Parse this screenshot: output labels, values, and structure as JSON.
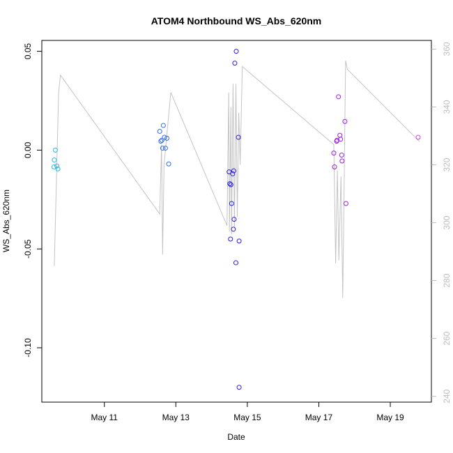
{
  "chart_data": {
    "type": "scatter",
    "title": "ATOM4 Northbound WS_Abs_620nm",
    "xlabel": "Date",
    "ylabel": "WS_Abs_620nm",
    "x_unit": "days in May",
    "xlim": [
      9.25,
      20.15
    ],
    "ylim": [
      -0.1275,
      0.0555
    ],
    "y2lim": [
      238,
      363
    ],
    "x_ticks": [
      {
        "value": 11,
        "label": "May 11"
      },
      {
        "value": 13,
        "label": "May 13"
      },
      {
        "value": 15,
        "label": "May 15"
      },
      {
        "value": 17,
        "label": "May 17"
      },
      {
        "value": 19,
        "label": "May 19"
      }
    ],
    "y_ticks": [
      {
        "value": 0.05,
        "label": "0.05"
      },
      {
        "value": 0.0,
        "label": "0.00"
      },
      {
        "value": -0.05,
        "label": "-0.05"
      },
      {
        "value": -0.1,
        "label": "-0.10"
      }
    ],
    "y2_ticks": [
      {
        "value": 240,
        "label": "240"
      },
      {
        "value": 260,
        "label": "260"
      },
      {
        "value": 280,
        "label": "280"
      },
      {
        "value": 300,
        "label": "300"
      },
      {
        "value": 320,
        "label": "320"
      },
      {
        "value": 340,
        "label": "340"
      },
      {
        "value": 360,
        "label": "360"
      }
    ],
    "grid": false,
    "series": [
      {
        "kind": "points",
        "color": "#29b8e6",
        "points": [
          {
            "x": 9.63,
            "y": 0.0
          },
          {
            "x": 9.6,
            "y": -0.005
          },
          {
            "x": 9.59,
            "y": -0.0085
          },
          {
            "x": 9.67,
            "y": -0.008
          },
          {
            "x": 9.7,
            "y": -0.0095
          }
        ]
      },
      {
        "kind": "points",
        "color": "#2f6de0",
        "points": [
          {
            "x": 12.55,
            "y": 0.0095
          },
          {
            "x": 12.58,
            "y": 0.0045
          },
          {
            "x": 12.61,
            "y": 0.005
          },
          {
            "x": 12.65,
            "y": 0.0125
          },
          {
            "x": 12.68,
            "y": 0.0065
          },
          {
            "x": 12.75,
            "y": 0.006
          },
          {
            "x": 12.63,
            "y": 0.001
          },
          {
            "x": 12.71,
            "y": 0.001
          },
          {
            "x": 12.8,
            "y": -0.007
          }
        ]
      },
      {
        "kind": "points",
        "color": "#2a1ee6",
        "points": [
          {
            "x": 14.69,
            "y": 0.05
          },
          {
            "x": 14.65,
            "y": 0.044
          },
          {
            "x": 14.75,
            "y": 0.0065
          },
          {
            "x": 14.49,
            "y": -0.011
          },
          {
            "x": 14.62,
            "y": -0.0105
          },
          {
            "x": 14.59,
            "y": -0.012
          },
          {
            "x": 14.51,
            "y": -0.017
          },
          {
            "x": 14.54,
            "y": -0.0175
          },
          {
            "x": 14.56,
            "y": -0.027
          },
          {
            "x": 14.63,
            "y": -0.035
          },
          {
            "x": 14.61,
            "y": -0.04
          },
          {
            "x": 14.53,
            "y": -0.045
          },
          {
            "x": 14.77,
            "y": -0.046
          },
          {
            "x": 14.68,
            "y": -0.057
          },
          {
            "x": 14.77,
            "y": -0.12
          }
        ]
      },
      {
        "kind": "points",
        "color": "#a01ee0",
        "points": [
          {
            "x": 17.55,
            "y": 0.027
          },
          {
            "x": 17.73,
            "y": 0.0145
          },
          {
            "x": 17.59,
            "y": 0.0075
          },
          {
            "x": 17.61,
            "y": 0.0055
          },
          {
            "x": 17.5,
            "y": 0.0045
          },
          {
            "x": 17.51,
            "y": 0.005
          },
          {
            "x": 17.42,
            "y": -0.0015
          },
          {
            "x": 17.64,
            "y": -0.0025
          },
          {
            "x": 17.65,
            "y": -0.0055
          },
          {
            "x": 17.44,
            "y": -0.0085
          },
          {
            "x": 17.76,
            "y": -0.027
          }
        ]
      },
      {
        "kind": "points",
        "color": "#cc3fd6",
        "points": [
          {
            "x": 19.78,
            "y": 0.0065
          }
        ]
      },
      {
        "kind": "line",
        "axis": "right",
        "color": "#c4c4c4",
        "points": [
          {
            "x": 9.6,
            "y": 285
          },
          {
            "x": 9.72,
            "y": 345
          },
          {
            "x": 9.77,
            "y": 351
          },
          {
            "x": 12.55,
            "y": 303
          },
          {
            "x": 12.6,
            "y": 327
          },
          {
            "x": 12.63,
            "y": 289
          },
          {
            "x": 12.67,
            "y": 320
          },
          {
            "x": 12.86,
            "y": 345
          },
          {
            "x": 14.43,
            "y": 299
          },
          {
            "x": 14.48,
            "y": 345
          },
          {
            "x": 14.5,
            "y": 297
          },
          {
            "x": 14.54,
            "y": 340
          },
          {
            "x": 14.56,
            "y": 296
          },
          {
            "x": 14.6,
            "y": 348
          },
          {
            "x": 14.64,
            "y": 298
          },
          {
            "x": 14.68,
            "y": 348
          },
          {
            "x": 14.72,
            "y": 302
          },
          {
            "x": 14.76,
            "y": 338
          },
          {
            "x": 14.8,
            "y": 320
          },
          {
            "x": 14.86,
            "y": 354
          },
          {
            "x": 17.42,
            "y": 327
          },
          {
            "x": 17.47,
            "y": 286
          },
          {
            "x": 17.52,
            "y": 318
          },
          {
            "x": 17.56,
            "y": 287
          },
          {
            "x": 17.62,
            "y": 316
          },
          {
            "x": 17.67,
            "y": 274
          },
          {
            "x": 17.7,
            "y": 305
          },
          {
            "x": 17.75,
            "y": 356
          },
          {
            "x": 17.8,
            "y": 353
          },
          {
            "x": 19.82,
            "y": 328
          }
        ]
      }
    ]
  }
}
